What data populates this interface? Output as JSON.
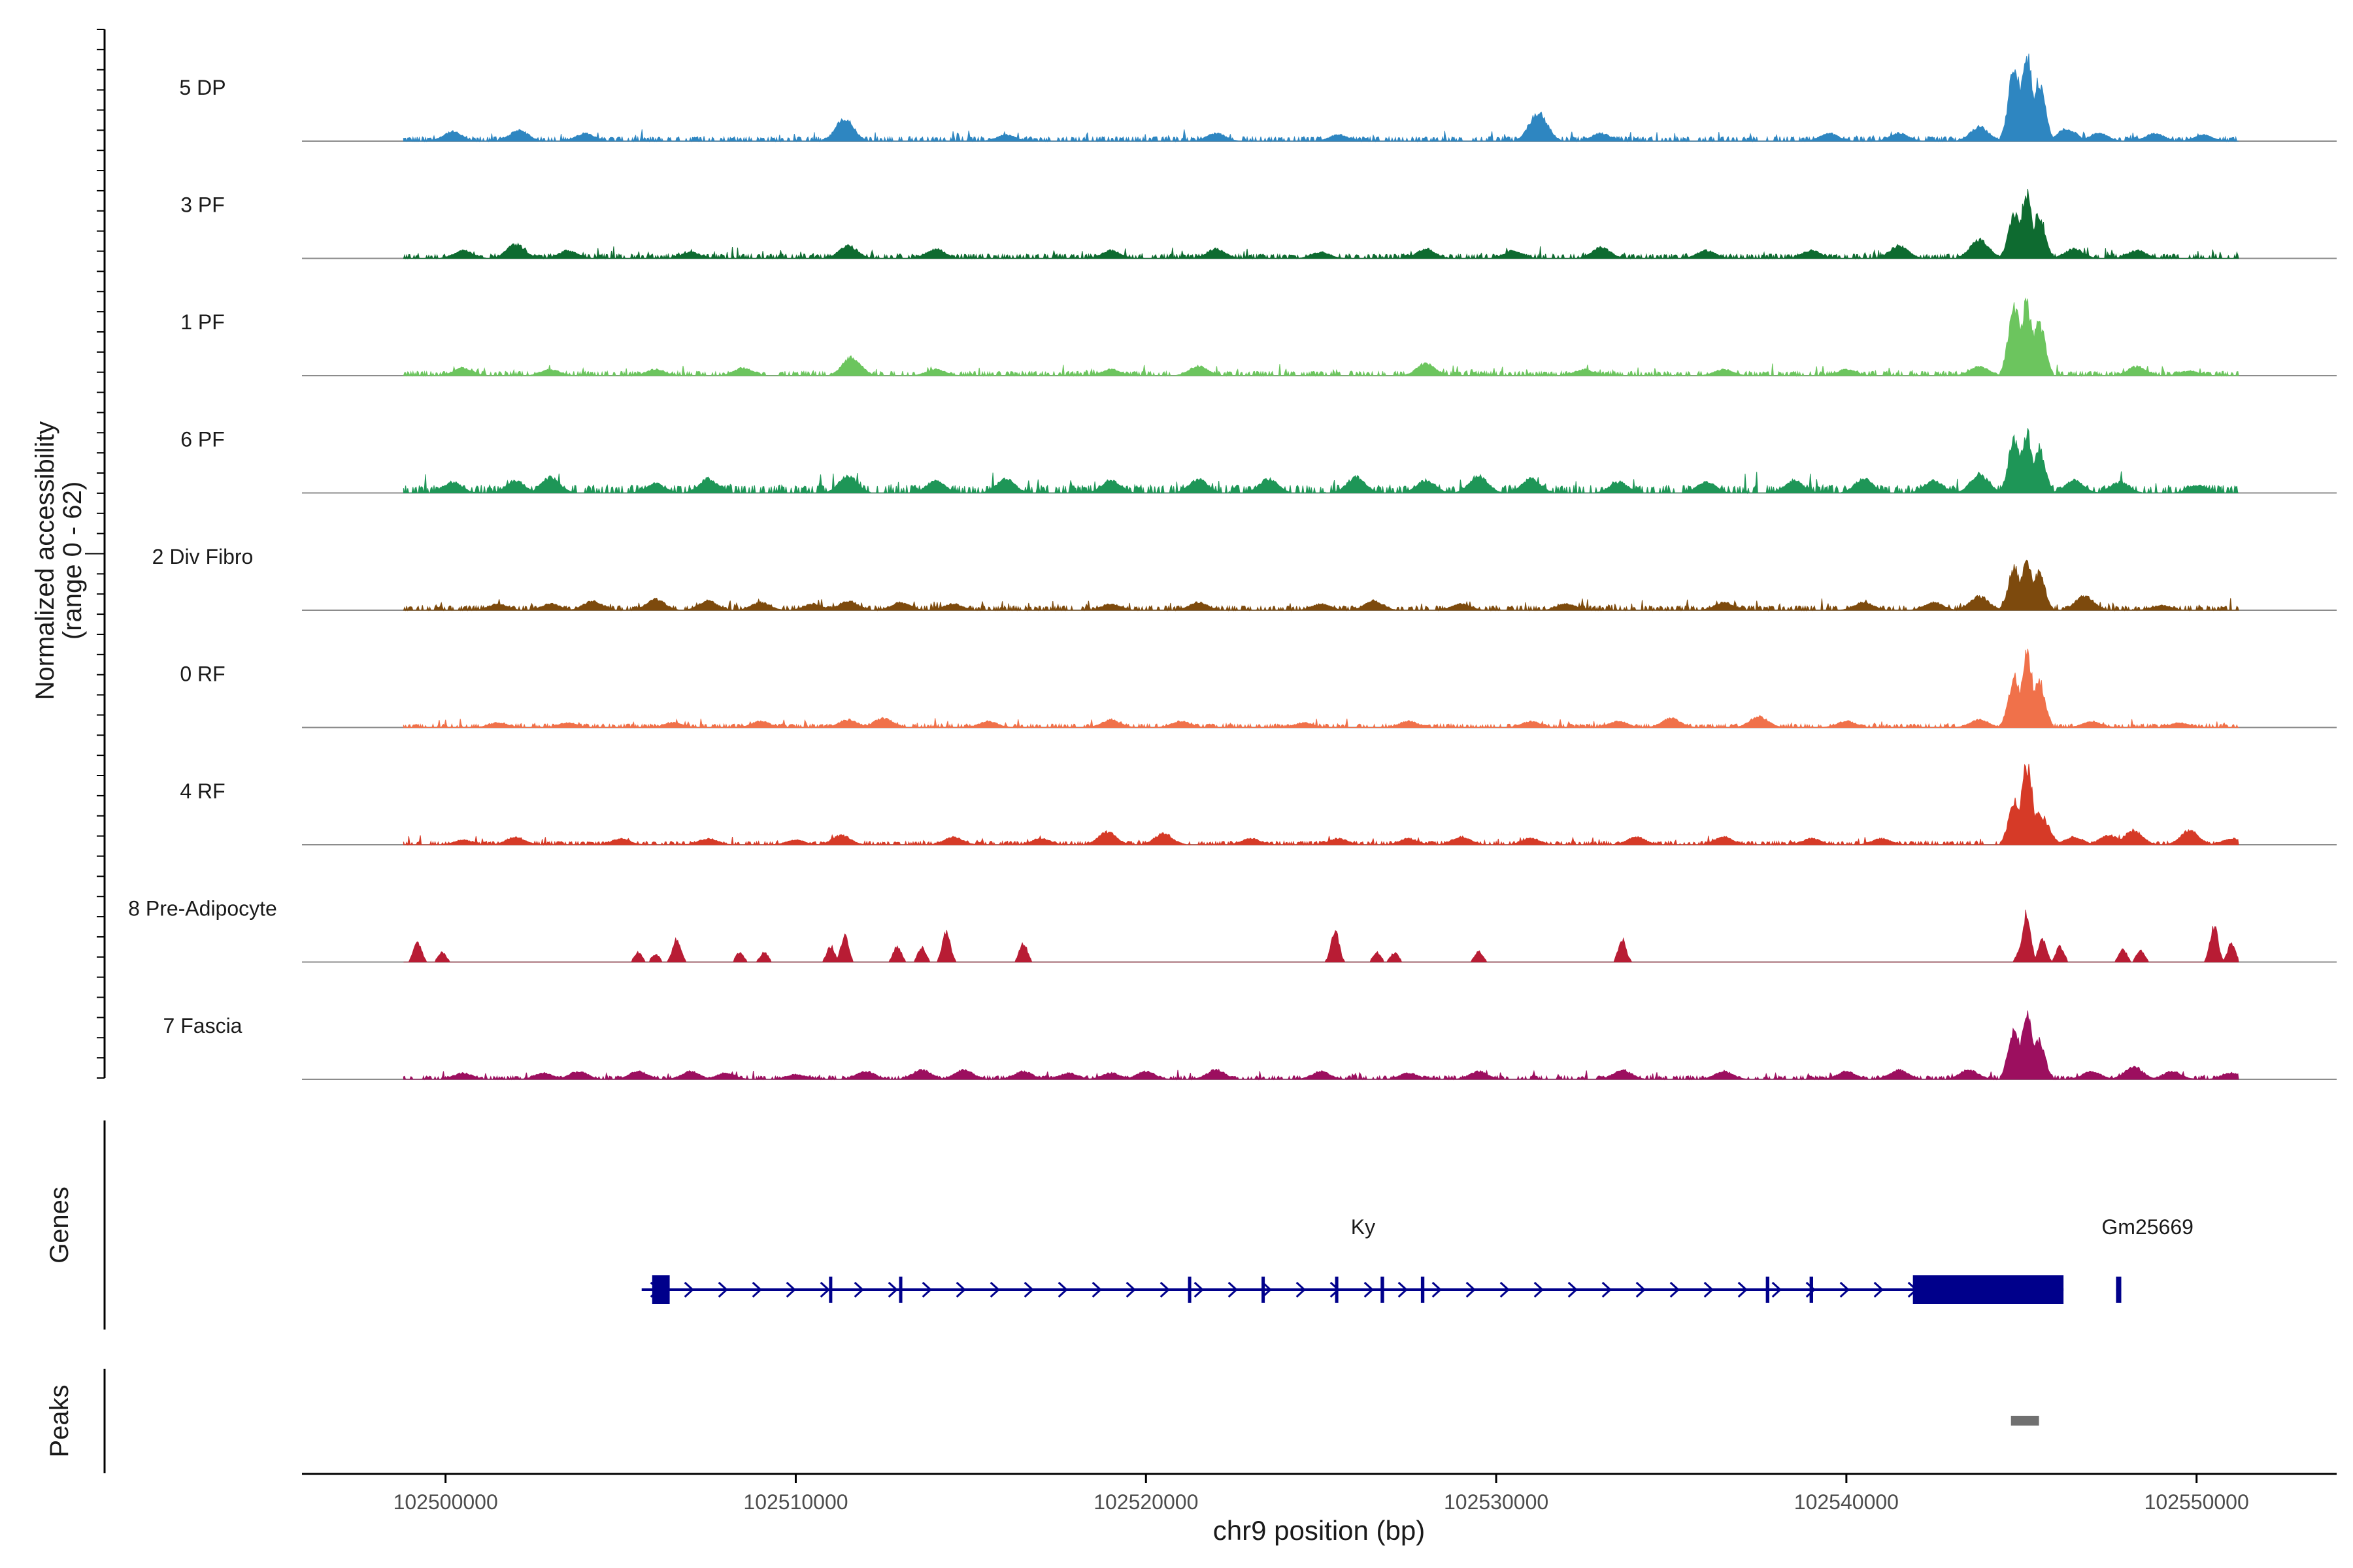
{
  "chart_data": {
    "type": "area",
    "title": "",
    "ylabel": "Normalized accessibility",
    "ylabel_range": "(range 0 - 62)",
    "y_range": [
      0,
      62
    ],
    "xlabel": "chr9 position (bp)",
    "x_range": [
      102495900,
      102554000
    ],
    "x_ticks": [
      {
        "value": 102500000,
        "label": "102500000"
      },
      {
        "value": 102510000,
        "label": "102510000"
      },
      {
        "value": 102520000,
        "label": "102520000"
      },
      {
        "value": 102530000,
        "label": "102530000"
      },
      {
        "value": 102540000,
        "label": "102540000"
      },
      {
        "value": 102550000,
        "label": "102550000"
      }
    ],
    "grid": false,
    "tracks": [
      {
        "name": "5 DP",
        "color": "#2e86c1",
        "style": "dense",
        "base": 2.5,
        "peaks": [
          [
            102500200,
            6
          ],
          [
            102502100,
            7
          ],
          [
            102504000,
            5
          ],
          [
            102511400,
            14
          ],
          [
            102516000,
            4
          ],
          [
            102522000,
            5
          ],
          [
            102525500,
            4
          ],
          [
            102531200,
            18
          ],
          [
            102533000,
            5
          ],
          [
            102539500,
            5
          ],
          [
            102541500,
            5
          ],
          [
            102543800,
            9
          ],
          [
            102544800,
            46
          ],
          [
            102545150,
            56
          ],
          [
            102545500,
            38
          ],
          [
            102546300,
            8
          ],
          [
            102547200,
            5
          ],
          [
            102548800,
            5
          ],
          [
            102550200,
            4
          ]
        ]
      },
      {
        "name": "3 PF",
        "color": "#0e6b30",
        "style": "dense",
        "base": 2.5,
        "peaks": [
          [
            102500500,
            5
          ],
          [
            102502000,
            9
          ],
          [
            102503500,
            5
          ],
          [
            102507000,
            4
          ],
          [
            102511500,
            8
          ],
          [
            102514000,
            6
          ],
          [
            102519000,
            5
          ],
          [
            102522000,
            6
          ],
          [
            102525000,
            4
          ],
          [
            102528000,
            6
          ],
          [
            102530500,
            5
          ],
          [
            102533000,
            7
          ],
          [
            102536000,
            5
          ],
          [
            102539000,
            5
          ],
          [
            102541500,
            8
          ],
          [
            102543800,
            12
          ],
          [
            102544800,
            28
          ],
          [
            102545150,
            40
          ],
          [
            102545500,
            28
          ],
          [
            102546500,
            6
          ],
          [
            102548300,
            5
          ]
        ]
      },
      {
        "name": "1 PF",
        "color": "#6cc55e",
        "style": "dense",
        "base": 2.5,
        "peaks": [
          [
            102500500,
            5
          ],
          [
            102503000,
            4
          ],
          [
            102506000,
            4
          ],
          [
            102508500,
            5
          ],
          [
            102511600,
            12
          ],
          [
            102514000,
            4
          ],
          [
            102519000,
            4
          ],
          [
            102521500,
            6
          ],
          [
            102528000,
            8
          ],
          [
            102532500,
            4
          ],
          [
            102536500,
            4
          ],
          [
            102540000,
            4
          ],
          [
            102543800,
            6
          ],
          [
            102544800,
            45
          ],
          [
            102545150,
            46
          ],
          [
            102545500,
            34
          ],
          [
            102548300,
            6
          ],
          [
            102549800,
            3
          ]
        ]
      },
      {
        "name": "6 PF",
        "color": "#1e9657",
        "style": "dense",
        "base": 4.5,
        "peaks": [
          [
            102500200,
            7
          ],
          [
            102502000,
            8
          ],
          [
            102503000,
            10
          ],
          [
            102506000,
            6
          ],
          [
            102507500,
            9
          ],
          [
            102511500,
            11
          ],
          [
            102514000,
            8
          ],
          [
            102516000,
            9
          ],
          [
            102519000,
            8
          ],
          [
            102521500,
            9
          ],
          [
            102523500,
            9
          ],
          [
            102526000,
            10
          ],
          [
            102528000,
            8
          ],
          [
            102529500,
            11
          ],
          [
            102531000,
            9
          ],
          [
            102533500,
            7
          ],
          [
            102536000,
            7
          ],
          [
            102538500,
            8
          ],
          [
            102540500,
            9
          ],
          [
            102542500,
            8
          ],
          [
            102543800,
            12
          ],
          [
            102544800,
            34
          ],
          [
            102545150,
            38
          ],
          [
            102545500,
            29
          ],
          [
            102546500,
            8
          ],
          [
            102547800,
            7
          ],
          [
            102550000,
            5
          ]
        ]
      },
      {
        "name": "2 Div Fibro",
        "color": "#7d4a0d",
        "style": "dense",
        "base": 2.5,
        "peaks": [
          [
            102501500,
            4
          ],
          [
            102503000,
            4
          ],
          [
            102504200,
            6
          ],
          [
            102506000,
            7
          ],
          [
            102507500,
            6
          ],
          [
            102509000,
            5
          ],
          [
            102510500,
            4
          ],
          [
            102511500,
            6
          ],
          [
            102513000,
            5
          ],
          [
            102514500,
            4
          ],
          [
            102519000,
            4
          ],
          [
            102521500,
            5
          ],
          [
            102525000,
            4
          ],
          [
            102526500,
            6
          ],
          [
            102529000,
            4
          ],
          [
            102532000,
            4
          ],
          [
            102536500,
            5
          ],
          [
            102540500,
            5
          ],
          [
            102542500,
            5
          ],
          [
            102543800,
            9
          ],
          [
            102544800,
            27
          ],
          [
            102545150,
            30
          ],
          [
            102545500,
            24
          ],
          [
            102546800,
            9
          ],
          [
            102549000,
            3
          ]
        ]
      },
      {
        "name": "0 RF",
        "color": "#f0714a",
        "style": "dense",
        "base": 2.0,
        "peaks": [
          [
            102501500,
            3
          ],
          [
            102503500,
            3
          ],
          [
            102506500,
            3
          ],
          [
            102509000,
            4
          ],
          [
            102511500,
            5
          ],
          [
            102512500,
            6
          ],
          [
            102515500,
            4
          ],
          [
            102519000,
            5
          ],
          [
            102521000,
            4
          ],
          [
            102524500,
            3
          ],
          [
            102527500,
            4
          ],
          [
            102531000,
            4
          ],
          [
            102533500,
            4
          ],
          [
            102535000,
            6
          ],
          [
            102537500,
            7
          ],
          [
            102540000,
            4
          ],
          [
            102543800,
            5
          ],
          [
            102544800,
            32
          ],
          [
            102545150,
            46
          ],
          [
            102545500,
            30
          ],
          [
            102547000,
            4
          ],
          [
            102549500,
            3
          ]
        ]
      },
      {
        "name": "4 RF",
        "color": "#d63a27",
        "style": "dense",
        "base": 2.0,
        "peaks": [
          [
            102500500,
            3
          ],
          [
            102502000,
            5
          ],
          [
            102505000,
            4
          ],
          [
            102507500,
            4
          ],
          [
            102510000,
            3
          ],
          [
            102511300,
            6
          ],
          [
            102514500,
            5
          ],
          [
            102517000,
            4
          ],
          [
            102518900,
            8
          ],
          [
            102520500,
            7
          ],
          [
            102523000,
            4
          ],
          [
            102525500,
            4
          ],
          [
            102527500,
            4
          ],
          [
            102529000,
            5
          ],
          [
            102531000,
            4
          ],
          [
            102534000,
            5
          ],
          [
            102536500,
            5
          ],
          [
            102539000,
            4
          ],
          [
            102541000,
            4
          ],
          [
            102544800,
            27
          ],
          [
            102545150,
            51
          ],
          [
            102545500,
            20
          ],
          [
            102546500,
            5
          ],
          [
            102547500,
            6
          ],
          [
            102548200,
            9
          ],
          [
            102549800,
            9
          ],
          [
            102551000,
            4
          ]
        ]
      },
      {
        "name": "8 Pre-Adipocyte",
        "color": "#b81c34",
        "style": "sparse",
        "base": 0,
        "peaks": [
          [
            102499200,
            13
          ],
          [
            102499900,
            6
          ],
          [
            102505500,
            6
          ],
          [
            102506000,
            5
          ],
          [
            102506600,
            15
          ],
          [
            102508400,
            6
          ],
          [
            102509100,
            6
          ],
          [
            102511000,
            10
          ],
          [
            102511400,
            16
          ],
          [
            102512900,
            10
          ],
          [
            102513600,
            9
          ],
          [
            102514300,
            20
          ],
          [
            102516500,
            12
          ],
          [
            102525400,
            20
          ],
          [
            102526600,
            6
          ],
          [
            102527100,
            6
          ],
          [
            102529500,
            7
          ],
          [
            102533600,
            14
          ],
          [
            102545000,
            10
          ],
          [
            102545150,
            32
          ],
          [
            102545600,
            15
          ],
          [
            102546100,
            10
          ],
          [
            102547900,
            8
          ],
          [
            102548400,
            8
          ],
          [
            102550500,
            23
          ],
          [
            102551000,
            12
          ]
        ]
      },
      {
        "name": "7 Fascia",
        "color": "#9c0f5f",
        "style": "dense",
        "base": 2.0,
        "peaks": [
          [
            102500500,
            4
          ],
          [
            102502800,
            4
          ],
          [
            102503800,
            5
          ],
          [
            102505500,
            5
          ],
          [
            102507000,
            5
          ],
          [
            102508000,
            4
          ],
          [
            102510000,
            3
          ],
          [
            102512000,
            5
          ],
          [
            102513600,
            6
          ],
          [
            102514800,
            6
          ],
          [
            102516500,
            5
          ],
          [
            102517800,
            4
          ],
          [
            102519000,
            4
          ],
          [
            102520000,
            5
          ],
          [
            102522000,
            6
          ],
          [
            102525000,
            5
          ],
          [
            102527500,
            4
          ],
          [
            102529500,
            5
          ],
          [
            102533600,
            6
          ],
          [
            102536500,
            5
          ],
          [
            102540000,
            5
          ],
          [
            102541500,
            6
          ],
          [
            102543500,
            6
          ],
          [
            102544800,
            32
          ],
          [
            102545150,
            42
          ],
          [
            102545500,
            24
          ],
          [
            102547000,
            5
          ],
          [
            102548200,
            8
          ],
          [
            102549300,
            5
          ],
          [
            102551000,
            4
          ]
        ]
      }
    ],
    "genes_track": {
      "label": "Genes",
      "color": "#00008b",
      "genes": [
        {
          "name": "Ky",
          "start": 102505600,
          "end": 102546200,
          "strand": "+",
          "exons": [
            [
              102505900,
              102506400
            ],
            [
              102510950,
              102511000
            ],
            [
              102512950,
              102513000
            ],
            [
              102521200,
              102521250
            ],
            [
              102523300,
              102523350
            ],
            [
              102525400,
              102525450
            ],
            [
              102526700,
              102526800
            ],
            [
              102527850,
              102527950
            ],
            [
              102537700,
              102537800
            ],
            [
              102538950,
              102539050
            ],
            [
              102541900,
              102546200
            ]
          ]
        },
        {
          "name": "Gm25669",
          "start": 102547700,
          "end": 102547850,
          "strand": "+",
          "exons": [
            [
              102547700,
              102547850
            ]
          ]
        }
      ]
    },
    "peaks_track": {
      "label": "Peaks",
      "color": "#707070",
      "regions": [
        [
          102544700,
          102545500
        ]
      ]
    }
  }
}
